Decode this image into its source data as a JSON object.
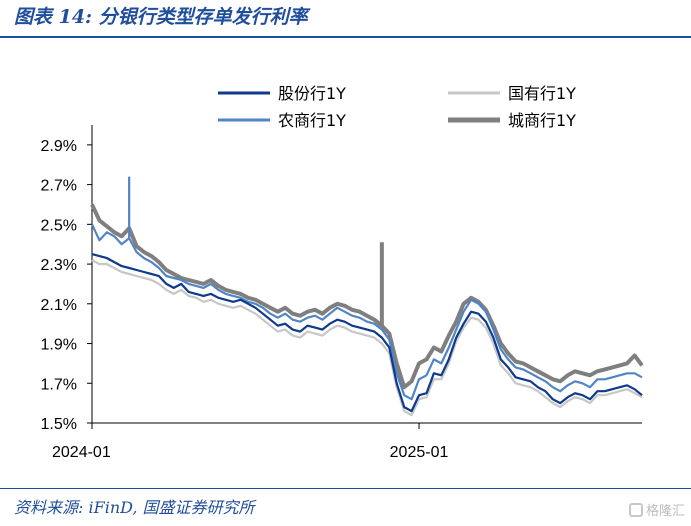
{
  "header": {
    "title": "图表 14:  分银行类型存单发行利率"
  },
  "footer": {
    "source": "资料来源: iFinD, 国盛证券研究所",
    "watermark": "格隆汇"
  },
  "chart_data": {
    "type": "line",
    "title": "图表 14:  分银行类型存单发行利率",
    "xlabel": "",
    "ylabel": "",
    "x_tick_labels": [
      "2024-01",
      "2025-01"
    ],
    "y_tick_labels": [
      "1.5%",
      "1.7%",
      "1.9%",
      "2.1%",
      "2.3%",
      "2.5%",
      "2.7%",
      "2.9%"
    ],
    "ylim": [
      1.5,
      3.0
    ],
    "y_ticks": [
      1.5,
      1.7,
      1.9,
      2.1,
      2.3,
      2.5,
      2.7,
      2.9
    ],
    "legend_position": "top",
    "grid": false,
    "series": [
      {
        "name": "股份行1Y",
        "color": "#0d3a8c",
        "values": [
          2.35,
          2.34,
          2.33,
          2.31,
          2.29,
          2.28,
          2.27,
          2.26,
          2.25,
          2.24,
          2.2,
          2.18,
          2.2,
          2.16,
          2.15,
          2.14,
          2.15,
          2.13,
          2.12,
          2.11,
          2.12,
          2.1,
          2.08,
          2.05,
          2.02,
          1.99,
          2.0,
          1.97,
          1.96,
          1.99,
          1.98,
          1.97,
          2.0,
          2.02,
          2.01,
          1.99,
          1.98,
          1.97,
          1.96,
          1.93,
          1.88,
          1.7,
          1.58,
          1.56,
          1.64,
          1.65,
          1.75,
          1.74,
          1.82,
          1.93,
          2.0,
          2.06,
          2.05,
          2.01,
          1.93,
          1.82,
          1.78,
          1.73,
          1.72,
          1.71,
          1.68,
          1.66,
          1.62,
          1.6,
          1.63,
          1.65,
          1.64,
          1.62,
          1.66,
          1.66,
          1.67,
          1.68,
          1.69,
          1.67,
          1.64
        ]
      },
      {
        "name": "国有行1Y",
        "color": "#c7c7c7",
        "values": [
          2.32,
          2.3,
          2.3,
          2.28,
          2.26,
          2.25,
          2.24,
          2.23,
          2.22,
          2.2,
          2.17,
          2.15,
          2.17,
          2.14,
          2.13,
          2.11,
          2.12,
          2.1,
          2.09,
          2.08,
          2.09,
          2.07,
          2.05,
          2.02,
          1.99,
          1.96,
          1.97,
          1.94,
          1.93,
          1.96,
          1.95,
          1.94,
          1.97,
          1.99,
          1.98,
          1.96,
          1.95,
          1.94,
          1.93,
          1.9,
          1.85,
          1.68,
          1.56,
          1.54,
          1.62,
          1.63,
          1.72,
          1.72,
          1.8,
          1.91,
          1.98,
          2.03,
          2.02,
          1.98,
          1.9,
          1.79,
          1.75,
          1.7,
          1.69,
          1.68,
          1.66,
          1.63,
          1.6,
          1.58,
          1.61,
          1.63,
          1.62,
          1.6,
          1.64,
          1.64,
          1.65,
          1.66,
          1.67,
          1.65,
          1.63
        ]
      },
      {
        "name": "农商行1Y",
        "color": "#4f85c8",
        "values": [
          2.5,
          2.42,
          2.46,
          2.44,
          2.4,
          2.43,
          2.36,
          2.33,
          2.31,
          2.28,
          2.24,
          2.23,
          2.22,
          2.2,
          2.19,
          2.18,
          2.2,
          2.17,
          2.15,
          2.14,
          2.13,
          2.11,
          2.1,
          2.08,
          2.05,
          2.03,
          2.05,
          2.02,
          2.01,
          2.03,
          2.04,
          2.02,
          2.05,
          2.08,
          2.06,
          2.04,
          2.03,
          2.01,
          2.0,
          1.97,
          1.92,
          1.75,
          1.64,
          1.62,
          1.72,
          1.74,
          1.82,
          1.8,
          1.88,
          1.97,
          2.06,
          2.12,
          2.1,
          2.06,
          1.97,
          1.87,
          1.82,
          1.78,
          1.77,
          1.75,
          1.73,
          1.71,
          1.68,
          1.66,
          1.69,
          1.71,
          1.7,
          1.68,
          1.72,
          1.72,
          1.73,
          1.74,
          1.75,
          1.75,
          1.73
        ]
      },
      {
        "name": "城商行1Y",
        "color": "#7f7f7f",
        "values": [
          2.6,
          2.52,
          2.49,
          2.46,
          2.44,
          2.48,
          2.39,
          2.36,
          2.34,
          2.31,
          2.27,
          2.25,
          2.23,
          2.22,
          2.21,
          2.2,
          2.22,
          2.19,
          2.17,
          2.16,
          2.15,
          2.13,
          2.12,
          2.1,
          2.08,
          2.06,
          2.08,
          2.05,
          2.04,
          2.06,
          2.07,
          2.05,
          2.08,
          2.1,
          2.09,
          2.07,
          2.06,
          2.04,
          2.02,
          1.99,
          1.95,
          1.8,
          1.68,
          1.71,
          1.8,
          1.82,
          1.88,
          1.86,
          1.94,
          2.01,
          2.1,
          2.13,
          2.11,
          2.07,
          1.99,
          1.9,
          1.85,
          1.81,
          1.8,
          1.78,
          1.76,
          1.74,
          1.72,
          1.71,
          1.74,
          1.76,
          1.75,
          1.74,
          1.76,
          1.77,
          1.78,
          1.79,
          1.8,
          1.84,
          1.79
        ]
      }
    ],
    "annotations_spikes": [
      {
        "series": "城商行1Y",
        "index": 39,
        "value": 2.41
      },
      {
        "series": "农商行1Y",
        "index": 5,
        "value": 2.74
      }
    ]
  }
}
